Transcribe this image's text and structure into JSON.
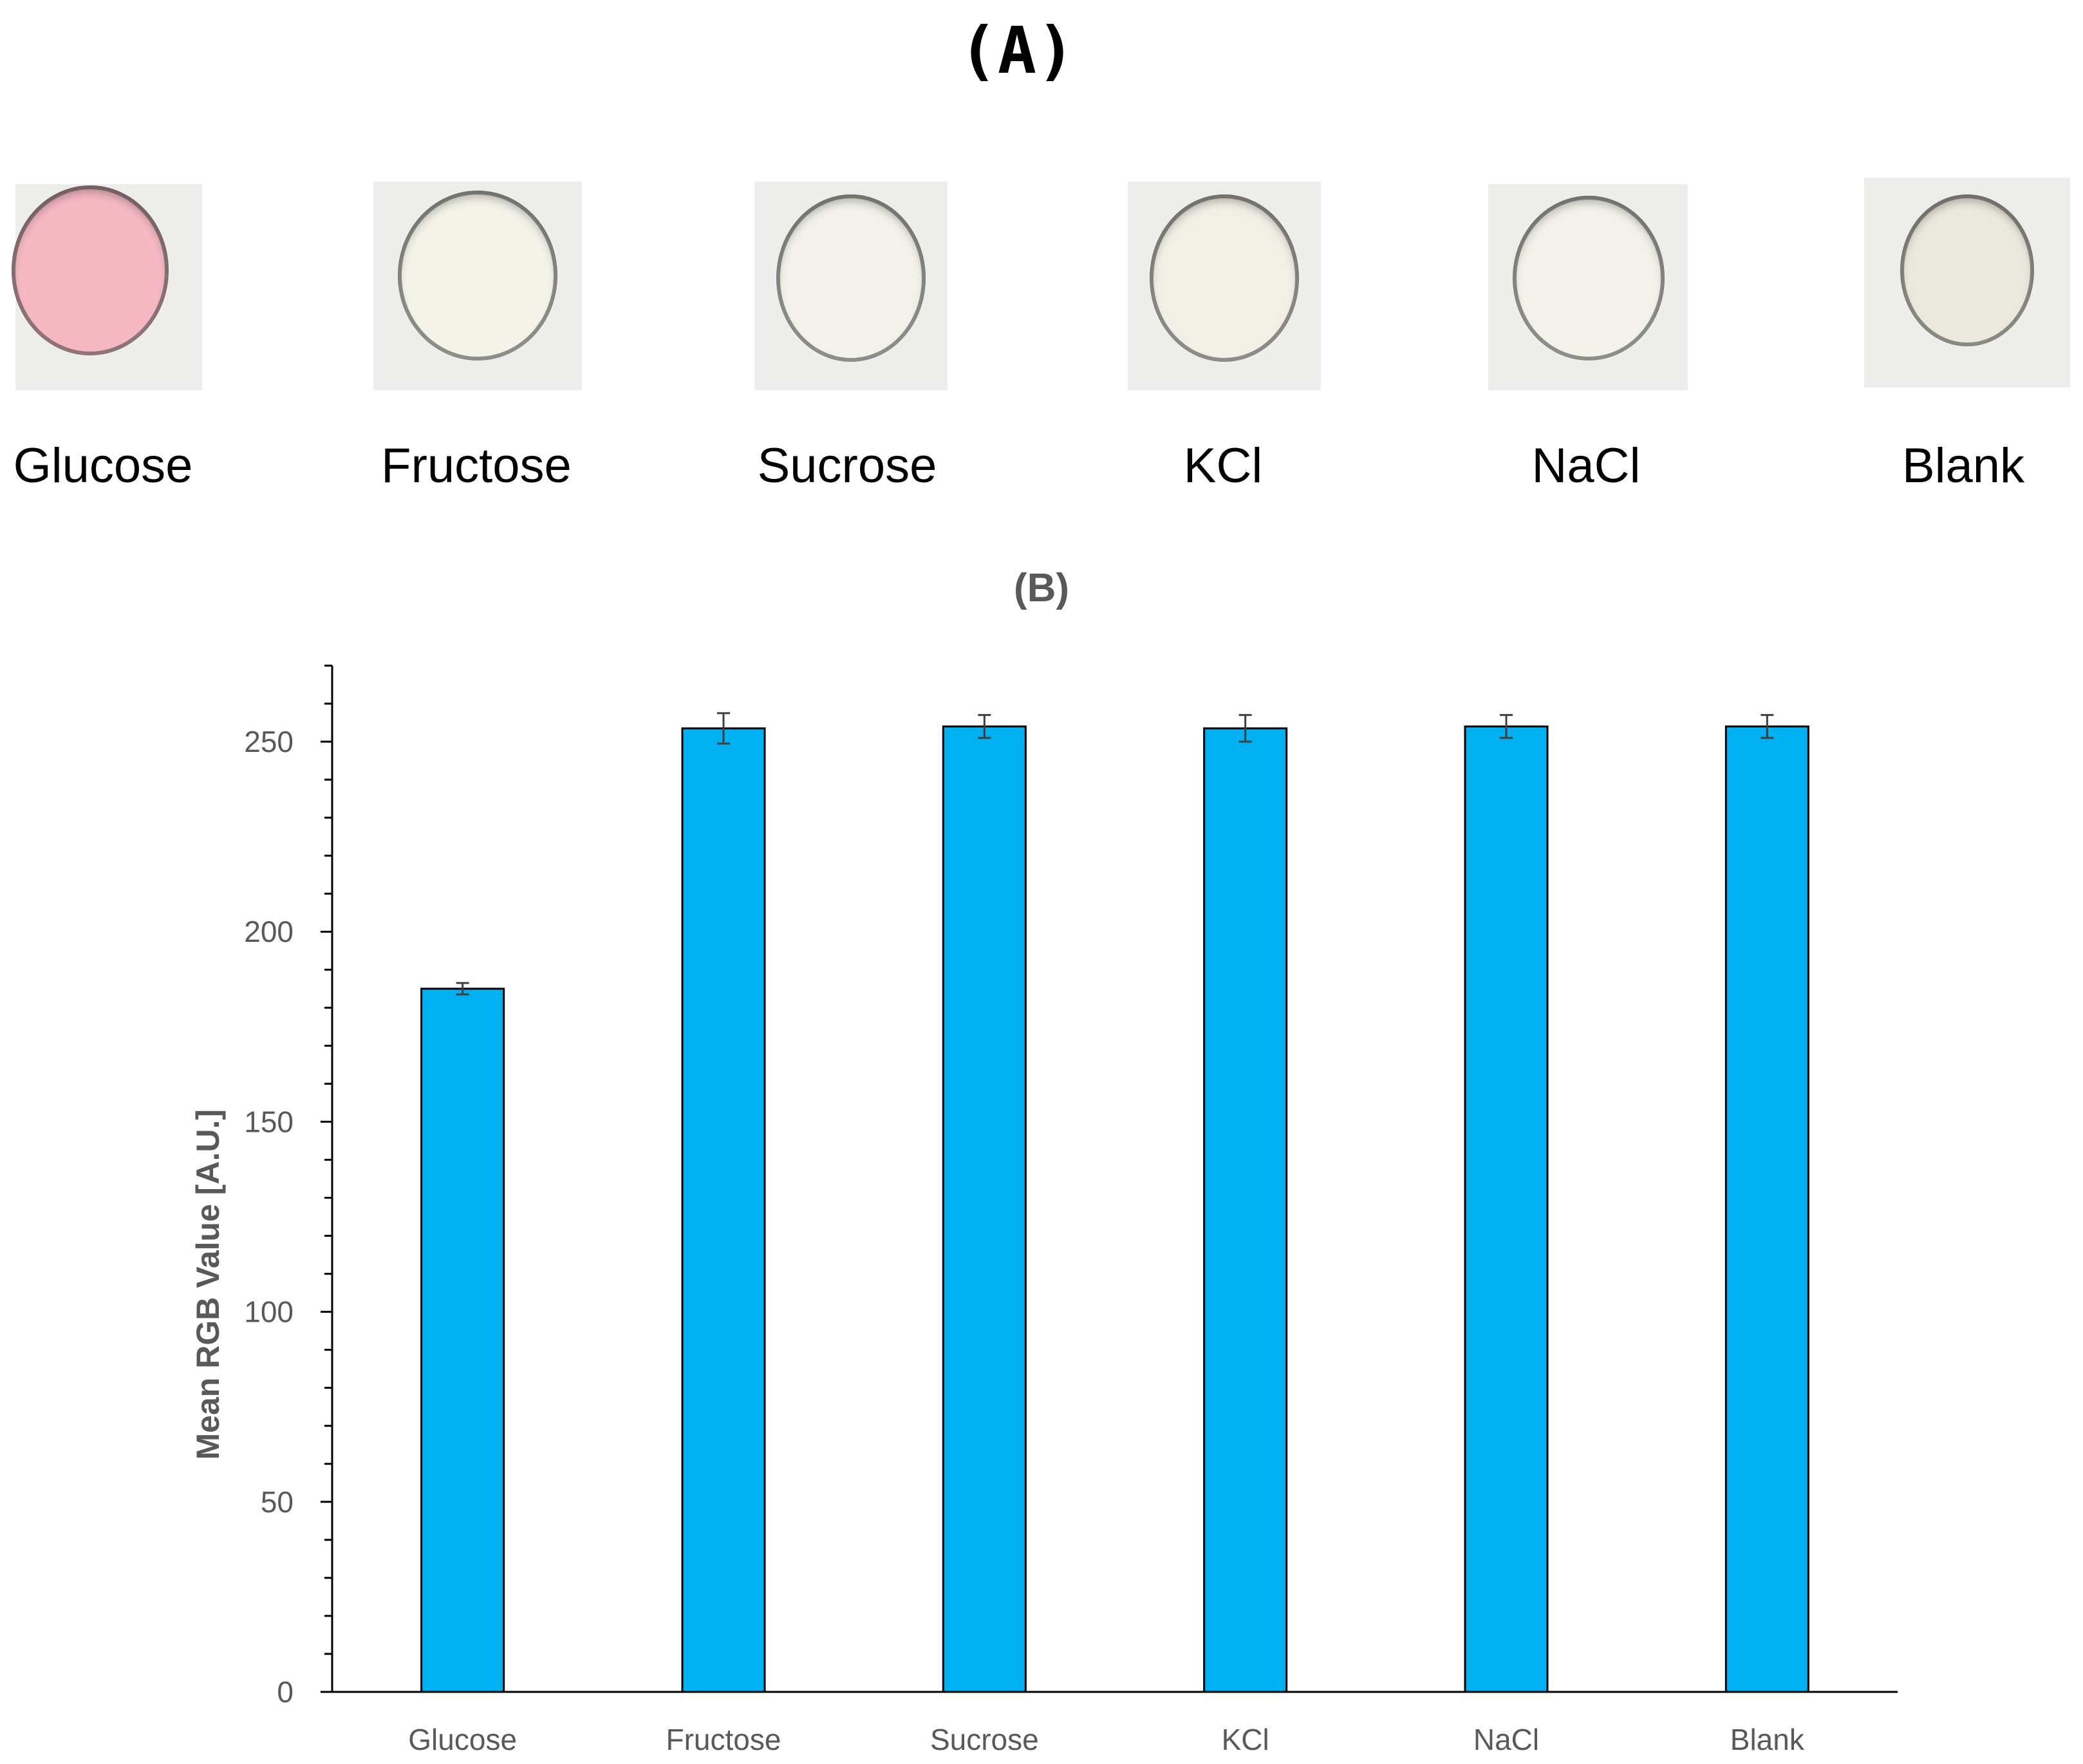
{
  "panel_a": {
    "title": "(A)",
    "swatches": [
      {
        "label": "Glucose",
        "color": "#f6b9c4"
      },
      {
        "label": "Fructose",
        "color": "#f4f3ea"
      },
      {
        "label": "Sucrose",
        "color": "#f2f2ea"
      },
      {
        "label": "KCl",
        "color": "#f1efe6"
      },
      {
        "label": "NaCl",
        "color": "#f3f2ea"
      },
      {
        "label": "Blank",
        "color": "#ebe9dd"
      }
    ]
  },
  "panel_b": {
    "title": "(B)"
  },
  "chart_data": {
    "type": "bar",
    "title": "(B)",
    "categories": [
      "Glucose",
      "Fructose",
      "Sucrose",
      "KCl",
      "NaCl",
      "Blank"
    ],
    "values": [
      185,
      253.5,
      254,
      253.5,
      254,
      254
    ],
    "errors": [
      1.5,
      4,
      3,
      3.5,
      3,
      3
    ],
    "xlabel": "",
    "ylabel": "Mean RGB Value [A.U.]",
    "ylim": [
      0,
      260
    ],
    "yticks": [
      0,
      50,
      100,
      150,
      200,
      250
    ],
    "y_minor_step": 10,
    "bar_color": "#00b0f0",
    "grid": false
  }
}
